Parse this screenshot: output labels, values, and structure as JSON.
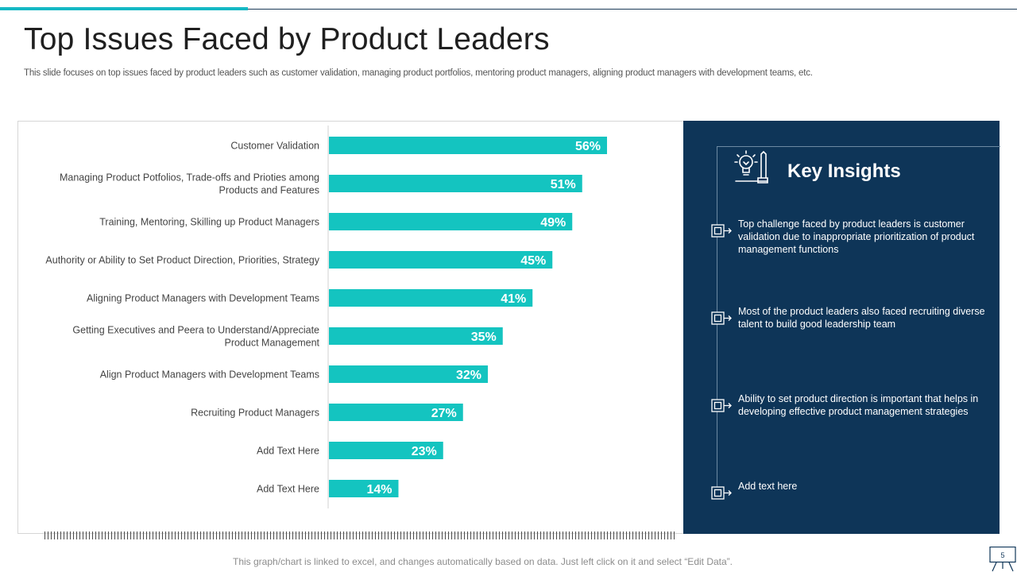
{
  "slide": {
    "title": "Top Issues Faced by Product Leaders",
    "subtitle": "This slide focuses on top issues faced by product leaders such as customer validation, managing product portfolios, mentoring product managers, aligning product managers with development teams, etc.",
    "footnote": "This graph/chart is linked to excel, and changes automatically based on data. Just left click on it and select “Edit Data”.",
    "page_number": "5"
  },
  "chart_data": {
    "type": "bar",
    "orientation": "horizontal",
    "categories": [
      "Customer Validation",
      "Managing Product Potfolios, Trade-offs and Prioties among Products and Features",
      "Training, Mentoring, Skilling up Product Managers",
      "Authority or Ability to Set Product Direction, Priorities, Strategy",
      "Aligning Product Managers with Development Teams",
      "Getting Executives and Peera to Understand/Appreciate Product Management",
      "Align Product Managers with Development Teams",
      "Recruiting Product Managers",
      "Add Text Here",
      "Add Text Here"
    ],
    "category_lines": [
      [
        "Customer Validation"
      ],
      [
        "Managing Product Potfolios, Trade-offs and Prioties among",
        "Products and Features"
      ],
      [
        "Training, Mentoring, Skilling up Product Managers"
      ],
      [
        "Authority or Ability to Set Product Direction, Priorities, Strategy"
      ],
      [
        "Aligning Product Managers with Development Teams"
      ],
      [
        "Getting Executives and Peera to Understand/Appreciate",
        "Product Management"
      ],
      [
        "Align Product Managers with Development Teams"
      ],
      [
        "Recruiting Product Managers"
      ],
      [
        "Add Text Here"
      ],
      [
        "Add Text Here"
      ]
    ],
    "values": [
      56,
      51,
      49,
      45,
      41,
      35,
      32,
      27,
      23,
      14
    ],
    "value_labels": [
      "56%",
      "51%",
      "49%",
      "45%",
      "41%",
      "35%",
      "32%",
      "27%",
      "23%",
      "14%"
    ],
    "xlim": [
      0,
      70
    ],
    "grid": false,
    "legend": "none",
    "colors": {
      "bar": "#14c4c0",
      "bar_label": "#ffffff",
      "category_label": "#444444",
      "axis": "#d0d0d0"
    }
  },
  "insights": {
    "title": "Key Insights",
    "icon": "idea-bulb-icon",
    "marker_icon": "checkbox-arrow-icon",
    "items": [
      "Top challenge faced by product leaders is customer validation due to inappropriate prioritization of product management functions",
      "Most of the product leaders also faced recruiting diverse talent to build good leadership team",
      "Ability to set product direction is important that helps in developing effective product management strategies",
      "Add text here"
    ]
  },
  "theme": {
    "accent": "#14b8c4",
    "panel_bg": "#0e3558",
    "title_color": "#1f1f1f"
  }
}
